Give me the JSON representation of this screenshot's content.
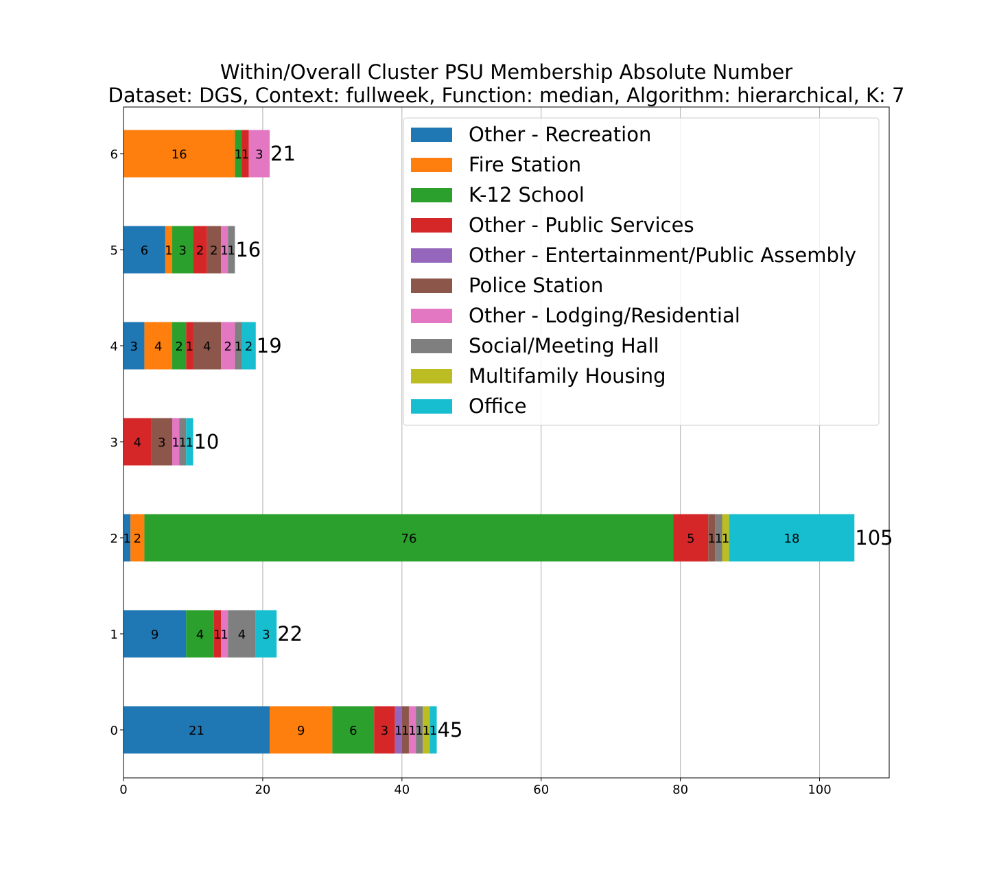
{
  "chart_data": {
    "type": "bar",
    "orientation": "horizontal",
    "stacked": true,
    "title": "Within/Overall Cluster PSU Membership Absolute Number",
    "subtitle": "Dataset: DGS, Context: fullweek, Function: median, Algorithm: hierarchical, K: 7",
    "xlabel": "",
    "ylabel": "",
    "xlim": [
      0,
      110
    ],
    "xticks": [
      0,
      20,
      40,
      60,
      80,
      100
    ],
    "grid": "vertical",
    "legend_position": "top-right",
    "categories": [
      "0",
      "1",
      "2",
      "3",
      "4",
      "5",
      "6"
    ],
    "totals": [
      45,
      22,
      105,
      10,
      19,
      16,
      21
    ],
    "series": [
      {
        "name": "Other - Recreation",
        "color": "#1f77b4",
        "values": [
          21,
          9,
          1,
          0,
          3,
          6,
          0
        ]
      },
      {
        "name": "Fire Station",
        "color": "#ff7f0e",
        "values": [
          9,
          0,
          2,
          0,
          4,
          1,
          16
        ]
      },
      {
        "name": "K-12 School",
        "color": "#2ca02c",
        "values": [
          6,
          4,
          76,
          0,
          2,
          3,
          1
        ]
      },
      {
        "name": "Other - Public Services",
        "color": "#d62728",
        "values": [
          3,
          1,
          5,
          4,
          1,
          2,
          1
        ]
      },
      {
        "name": "Other - Entertainment/Public Assembly",
        "color": "#9467bd",
        "values": [
          1,
          0,
          0,
          0,
          0,
          0,
          0
        ]
      },
      {
        "name": "Police Station",
        "color": "#8c564b",
        "values": [
          1,
          0,
          1,
          3,
          4,
          2,
          0
        ]
      },
      {
        "name": "Other - Lodging/Residential",
        "color": "#e377c2",
        "values": [
          1,
          1,
          0,
          1,
          2,
          1,
          3
        ]
      },
      {
        "name": "Social/Meeting Hall",
        "color": "#7f7f7f",
        "values": [
          1,
          4,
          1,
          1,
          1,
          1,
          0
        ]
      },
      {
        "name": "Multifamily Housing",
        "color": "#bcbd22",
        "values": [
          1,
          0,
          1,
          0,
          0,
          0,
          0
        ]
      },
      {
        "name": "Office",
        "color": "#17becf",
        "values": [
          1,
          3,
          18,
          1,
          2,
          0,
          0
        ]
      }
    ]
  }
}
